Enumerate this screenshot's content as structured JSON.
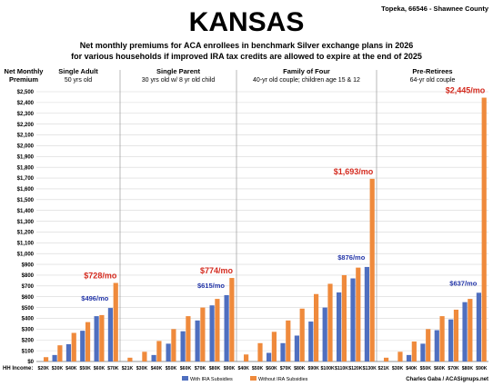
{
  "chart_data": {
    "type": "bar",
    "title": "KANSAS",
    "location": "Topeka, 66546 - Shawnee County",
    "subtitle_line1": "Net monthly premiums for ACA enrollees in benchmark Silver exchange plans in 2026",
    "subtitle_line2": "for various households if improved IRA tax credits are allowed to expire at the end of 2025",
    "ylabel_line1": "Net Monthly",
    "ylabel_line2": "Premium",
    "xlabel": "HH Income:",
    "credit": "Charles Gaba / ACASignups.net",
    "ylim": [
      0,
      2500
    ],
    "ytick_step": 100,
    "yticks_labels": [
      "$0",
      "$100",
      "$200",
      "$300",
      "$400",
      "$500",
      "$600",
      "$700",
      "$800",
      "$900",
      "$1,000",
      "$1,100",
      "$1,200",
      "$1,300",
      "$1,400",
      "$1,500",
      "$1,600",
      "$1,700",
      "$1,800",
      "$1,900",
      "$2,000",
      "$2,100",
      "$2,200",
      "$2,300",
      "$2,400",
      "$2,500"
    ],
    "legend": [
      {
        "name": "With IRA Subsidies",
        "color": "#4f6fbf"
      },
      {
        "name": "Without IRA Subsidies",
        "color": "#ef8a3c"
      }
    ],
    "series_names": [
      "With IRA Subsidies",
      "Without IRA Subsidies"
    ],
    "groups": [
      {
        "title_line1": "Single Adult",
        "title_line2": "50 yrs old",
        "categories": [
          "$20K",
          "$30K",
          "$40K",
          "$50K",
          "$60K",
          "$70K"
        ],
        "with_ira": [
          0,
          60,
          160,
          285,
          420,
          496
        ],
        "without_ira": [
          40,
          150,
          265,
          365,
          430,
          728
        ],
        "label_with": "$496/mo",
        "label_without": "$728/mo"
      },
      {
        "title_line1": "Single Parent",
        "title_line2": "30 yrs old w/ 8 yr old child",
        "categories": [
          "$21K",
          "$30K",
          "$40K",
          "$50K",
          "$60K",
          "$70K",
          "$80K",
          "$90K"
        ],
        "with_ira": [
          0,
          0,
          60,
          165,
          280,
          380,
          520,
          615
        ],
        "without_ira": [
          35,
          90,
          190,
          300,
          420,
          500,
          580,
          774
        ],
        "label_with": "$615/mo",
        "label_without": "$774/mo"
      },
      {
        "title_line1": "Family of Four",
        "title_line2": "40-yr old couple; children age 15 & 12",
        "categories": [
          "$40K",
          "$50K",
          "$60K",
          "$70K",
          "$80K",
          "$90K",
          "$100K",
          "$110K",
          "$120K",
          "$130K"
        ],
        "with_ira": [
          0,
          0,
          80,
          170,
          240,
          370,
          500,
          640,
          770,
          876
        ],
        "without_ira": [
          65,
          170,
          275,
          380,
          490,
          625,
          720,
          800,
          870,
          1693
        ],
        "label_with": "$876/mo",
        "label_without": "$1,693/mo"
      },
      {
        "title_line1": "Pre-Retirees",
        "title_line2": "64-yr old couple",
        "categories": [
          "$21K",
          "$30K",
          "$40K",
          "$50K",
          "$60K",
          "$70K",
          "$80K",
          "$90K"
        ],
        "with_ira": [
          0,
          0,
          60,
          165,
          290,
          390,
          550,
          637
        ],
        "without_ira": [
          35,
          90,
          185,
          300,
          420,
          480,
          580,
          2445
        ],
        "label_with": "$637/mo",
        "label_without": "$2,445/mo"
      }
    ],
    "grid": true,
    "legend_position": "bottom-center"
  }
}
